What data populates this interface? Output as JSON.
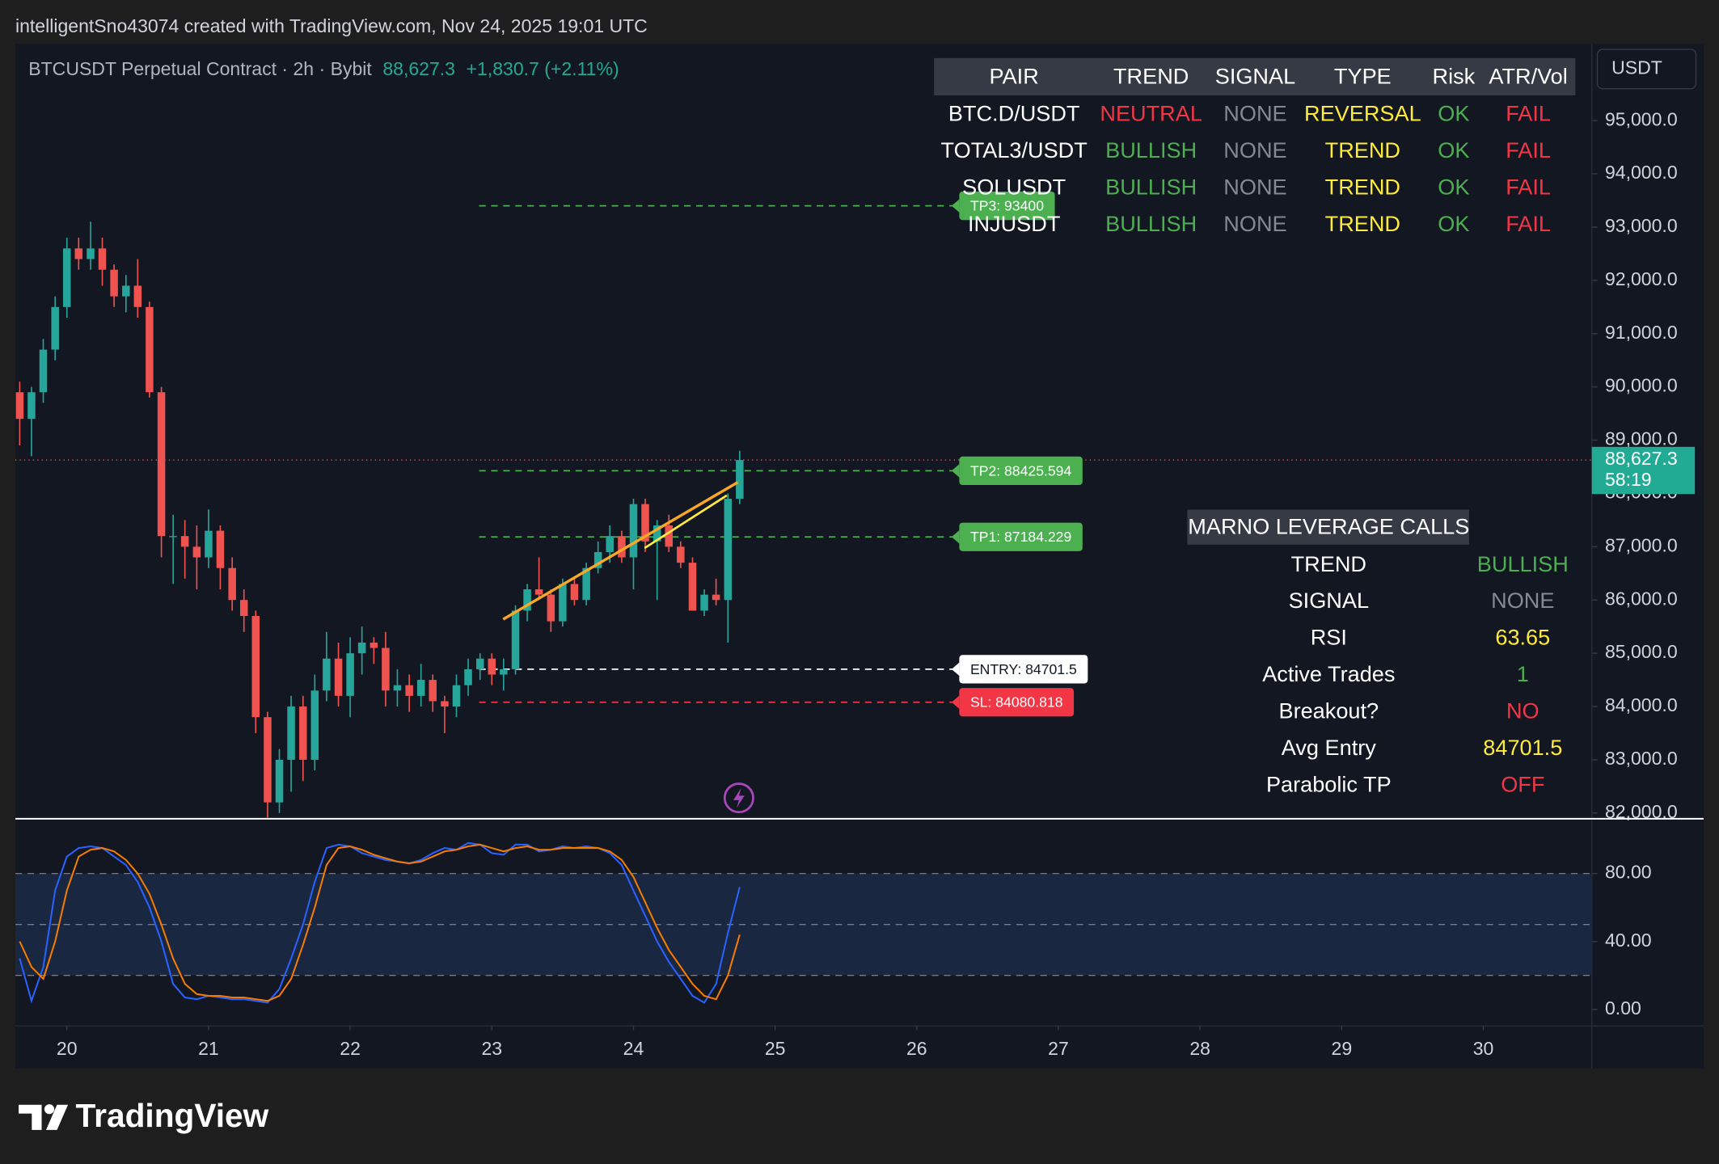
{
  "header": {
    "attribution": "intelligentSno43074 created with TradingView.com, Nov 24, 2025 19:01 UTC"
  },
  "legend": {
    "symbol": "BTCUSDT Perpetual Contract · 2h · Bybit",
    "price": "88,627.3",
    "change": "+1,830.7 (+2.11%)"
  },
  "currency": "USDT",
  "brand": "TradingView",
  "last_price": {
    "value": 88627.3,
    "label": "88,627.3",
    "countdown": "58:19",
    "color": "#22ab94"
  },
  "levels": [
    {
      "label": "TP3: 93400",
      "value": 93400,
      "color": "#4caf50"
    },
    {
      "label": "TP2: 88425.594",
      "value": 88425.594,
      "color": "#4caf50"
    },
    {
      "label": "TP1: 87184.229",
      "value": 87184.229,
      "color": "#4caf50"
    },
    {
      "label": "ENTRY: 84701.5",
      "value": 84701.5,
      "color": "#ffffff"
    },
    {
      "label": "SL: 84080.818",
      "value": 84080.818,
      "color": "#f23645"
    }
  ],
  "pair_table": {
    "columns": [
      "PAIR",
      "TREND",
      "SIGNAL",
      "TYPE",
      "Risk",
      "ATR/Vol"
    ],
    "rows": [
      [
        {
          "text": "BTC.D/USDT",
          "color": "#ffffff"
        },
        {
          "text": "NEUTRAL",
          "color": "#f23645"
        },
        {
          "text": "NONE",
          "color": "#868993"
        },
        {
          "text": "REVERSAL",
          "color": "#ffeb3b"
        },
        {
          "text": "OK",
          "color": "#4caf50"
        },
        {
          "text": "FAIL",
          "color": "#f23645"
        }
      ],
      [
        {
          "text": "TOTAL3/USDT",
          "color": "#ffffff"
        },
        {
          "text": "BULLISH",
          "color": "#4caf50"
        },
        {
          "text": "NONE",
          "color": "#868993"
        },
        {
          "text": "TREND",
          "color": "#ffeb3b"
        },
        {
          "text": "OK",
          "color": "#4caf50"
        },
        {
          "text": "FAIL",
          "color": "#f23645"
        }
      ],
      [
        {
          "text": "SOLUSDT",
          "color": "#ffffff"
        },
        {
          "text": "BULLISH",
          "color": "#4caf50"
        },
        {
          "text": "NONE",
          "color": "#868993"
        },
        {
          "text": "TREND",
          "color": "#ffeb3b"
        },
        {
          "text": "OK",
          "color": "#4caf50"
        },
        {
          "text": "FAIL",
          "color": "#f23645"
        }
      ],
      [
        {
          "text": "INJUSDT",
          "color": "#ffffff"
        },
        {
          "text": "BULLISH",
          "color": "#4caf50"
        },
        {
          "text": "NONE",
          "color": "#868993"
        },
        {
          "text": "TREND",
          "color": "#ffeb3b"
        },
        {
          "text": "OK",
          "color": "#4caf50"
        },
        {
          "text": "FAIL",
          "color": "#f23645"
        }
      ]
    ]
  },
  "calls": {
    "title": "MARNO LEVERAGE CALLS",
    "rows": [
      {
        "label": "TREND",
        "value": "BULLISH",
        "color": "#4caf50"
      },
      {
        "label": "SIGNAL",
        "value": "NONE",
        "color": "#868993"
      },
      {
        "label": "RSI",
        "value": "63.65",
        "color": "#ffeb3b"
      },
      {
        "label": "Active Trades",
        "value": "1",
        "color": "#4caf50"
      },
      {
        "label": "Breakout?",
        "value": "NO",
        "color": "#f23645"
      },
      {
        "label": "Avg Entry",
        "value": "84701.5",
        "color": "#ffeb3b"
      },
      {
        "label": "Parabolic TP",
        "value": "OFF",
        "color": "#f23645"
      }
    ]
  },
  "chart_data": [
    {
      "type": "candlestick",
      "up_color": "#26a69a",
      "down_color": "#ef5350",
      "x": [
        19.667,
        19.75,
        19.833,
        19.917,
        20,
        20.083,
        20.167,
        20.25,
        20.333,
        20.417,
        20.5,
        20.583,
        20.667,
        20.75,
        20.833,
        20.917,
        21,
        21.083,
        21.167,
        21.25,
        21.333,
        21.417,
        21.5,
        21.583,
        21.667,
        21.75,
        21.833,
        21.917,
        22,
        22.083,
        22.167,
        22.25,
        22.333,
        22.417,
        22.5,
        22.583,
        22.667,
        22.75,
        22.833,
        22.917,
        23,
        23.083,
        23.167,
        23.25,
        23.333,
        23.417,
        23.5,
        23.583,
        23.667,
        23.75,
        23.833,
        23.917,
        24,
        24.083,
        24.167,
        24.25,
        24.333,
        24.417,
        24.5,
        24.583,
        24.667,
        24.75
      ],
      "open": [
        89900,
        89400,
        89900,
        90700,
        91500,
        92600,
        92400,
        92600,
        92200,
        91700,
        91900,
        91500,
        89900,
        87200,
        87200,
        87000,
        86800,
        87300,
        86600,
        86000,
        85700,
        83800,
        82200,
        83000,
        84000,
        83000,
        84300,
        84900,
        84200,
        85000,
        85200,
        85100,
        84300,
        84400,
        84200,
        84500,
        84100,
        84000,
        84400,
        84700,
        84900,
        84600,
        84700,
        85800,
        86200,
        86100,
        85600,
        86300,
        86000,
        86600,
        86900,
        87200,
        86800,
        87800,
        87100,
        87400,
        87000,
        86700,
        85800,
        86100,
        86000,
        87900
      ],
      "high": [
        90100,
        90000,
        90900,
        91700,
        92800,
        92800,
        93100,
        92800,
        92300,
        92100,
        92400,
        91600,
        90000,
        87600,
        87500,
        87400,
        87700,
        87400,
        86800,
        86200,
        85800,
        83900,
        83200,
        84200,
        84200,
        84600,
        85400,
        85200,
        85300,
        85500,
        85300,
        85400,
        84700,
        84600,
        84800,
        84600,
        84200,
        84600,
        84900,
        85000,
        85000,
        84900,
        85900,
        86300,
        86800,
        86200,
        86400,
        86400,
        86700,
        87100,
        87400,
        87300,
        87900,
        87900,
        87500,
        87600,
        87100,
        86800,
        86200,
        86400,
        88000,
        88800
      ],
      "low": [
        88900,
        88700,
        89700,
        90500,
        91300,
        92200,
        92200,
        91900,
        91500,
        91400,
        91300,
        89800,
        86800,
        86300,
        86400,
        86200,
        86600,
        86200,
        85800,
        85400,
        83500,
        81800,
        82000,
        82400,
        82600,
        82800,
        84100,
        84000,
        83800,
        84600,
        84800,
        84000,
        84000,
        83900,
        84000,
        83900,
        83500,
        83800,
        84200,
        84500,
        84400,
        84300,
        84600,
        85600,
        86000,
        85400,
        85500,
        85900,
        85900,
        86500,
        86700,
        86700,
        86200,
        86900,
        86000,
        86900,
        86600,
        85800,
        85700,
        85900,
        85200,
        87800
      ],
      "close": [
        89400,
        89900,
        90700,
        91500,
        92600,
        92400,
        92600,
        92200,
        91700,
        91900,
        91500,
        89900,
        87200,
        87200,
        87000,
        86800,
        87300,
        86600,
        86000,
        85700,
        83800,
        82200,
        83000,
        84000,
        83000,
        84300,
        84900,
        84200,
        85000,
        85200,
        85100,
        84300,
        84400,
        84200,
        84500,
        84100,
        84000,
        84400,
        84700,
        84900,
        84600,
        84700,
        85800,
        86200,
        86100,
        85600,
        86300,
        86000,
        86600,
        86900,
        87200,
        86800,
        87800,
        87100,
        87400,
        87000,
        86700,
        85800,
        86100,
        86000,
        87900,
        88627.3
      ],
      "xlim": [
        19.636,
        30.766
      ],
      "xticks": [
        20,
        21,
        22,
        23,
        24,
        25,
        26,
        27,
        28,
        29,
        30
      ],
      "ylim": [
        81914,
        96440
      ],
      "yticks": [
        {
          "value": 82000,
          "label": "82,000.0"
        },
        {
          "value": 83000,
          "label": "83,000.0"
        },
        {
          "value": 84000,
          "label": "84,000.0"
        },
        {
          "value": 85000,
          "label": "85,000.0"
        },
        {
          "value": 86000,
          "label": "86,000.0"
        },
        {
          "value": 87000,
          "label": "87,000.0"
        },
        {
          "value": 88000,
          "label": "88,000.0"
        },
        {
          "value": 89000,
          "label": "89,000.0"
        },
        {
          "value": 90000,
          "label": "90,000.0"
        },
        {
          "value": 91000,
          "label": "91,000.0"
        },
        {
          "value": 92000,
          "label": "92,000.0"
        },
        {
          "value": 93000,
          "label": "93,000.0"
        },
        {
          "value": 94000,
          "label": "94,000.0"
        },
        {
          "value": 95000,
          "label": "95,000.0"
        }
      ]
    },
    {
      "type": "line",
      "ylim": [
        -9.7,
        111.6
      ],
      "yticks": [
        {
          "value": 0,
          "label": "0.00"
        },
        {
          "value": 40,
          "label": "40.00"
        },
        {
          "value": 80,
          "label": "80.00"
        }
      ],
      "bands": [
        80,
        50,
        20
      ],
      "series": [
        {
          "color": "#2962ff",
          "values": [
            30,
            5,
            25,
            70,
            90,
            95,
            96,
            95,
            90,
            85,
            75,
            60,
            40,
            15,
            7,
            6,
            8,
            7,
            6,
            6,
            5,
            4,
            12,
            30,
            50,
            75,
            95,
            97,
            96,
            92,
            90,
            88,
            87,
            86,
            88,
            92,
            95,
            94,
            98,
            97,
            92,
            91,
            97,
            97,
            93,
            94,
            96,
            95,
            96,
            95,
            92,
            85,
            70,
            55,
            40,
            28,
            18,
            8,
            4,
            15,
            45,
            72
          ]
        },
        {
          "color": "#f57c00",
          "values": [
            40,
            25,
            18,
            40,
            70,
            90,
            94,
            95,
            93,
            88,
            80,
            68,
            50,
            30,
            15,
            9,
            8,
            8,
            7,
            7,
            6,
            5,
            8,
            18,
            38,
            60,
            85,
            95,
            96,
            94,
            91,
            89,
            87,
            86,
            87,
            90,
            93,
            94,
            96,
            97,
            95,
            93,
            95,
            96,
            94,
            94,
            95,
            95,
            95,
            95,
            93,
            88,
            78,
            63,
            48,
            35,
            25,
            15,
            8,
            6,
            20,
            44
          ]
        }
      ]
    }
  ]
}
